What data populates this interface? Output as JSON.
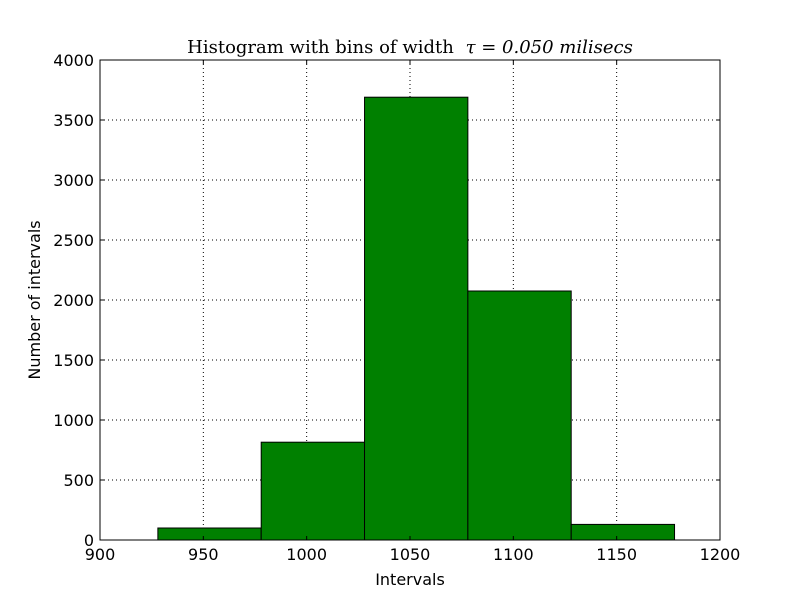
{
  "chart_data": {
    "type": "bar",
    "title": "Histogram with bins of width",
    "title_math": "τ = 0.050 milisecs",
    "xlabel": "Intervals",
    "ylabel": "Number of intervals",
    "xlim": [
      900,
      1200
    ],
    "ylim": [
      0,
      4000
    ],
    "xticks": [
      900,
      950,
      1000,
      1050,
      1100,
      1150,
      1200
    ],
    "yticks": [
      0,
      500,
      1000,
      1500,
      2000,
      2500,
      3000,
      3500,
      4000
    ],
    "grid": true,
    "bins": [
      {
        "start": 928,
        "end": 978,
        "value": 100
      },
      {
        "start": 978,
        "end": 1028,
        "value": 815
      },
      {
        "start": 1028,
        "end": 1078,
        "value": 3690
      },
      {
        "start": 1078,
        "end": 1128,
        "value": 2075
      },
      {
        "start": 1128,
        "end": 1178,
        "value": 130
      }
    ],
    "colors": {
      "bar_fill": "#008000",
      "bar_edge": "#000000",
      "grid": "#000000",
      "axes": "#000000"
    }
  }
}
